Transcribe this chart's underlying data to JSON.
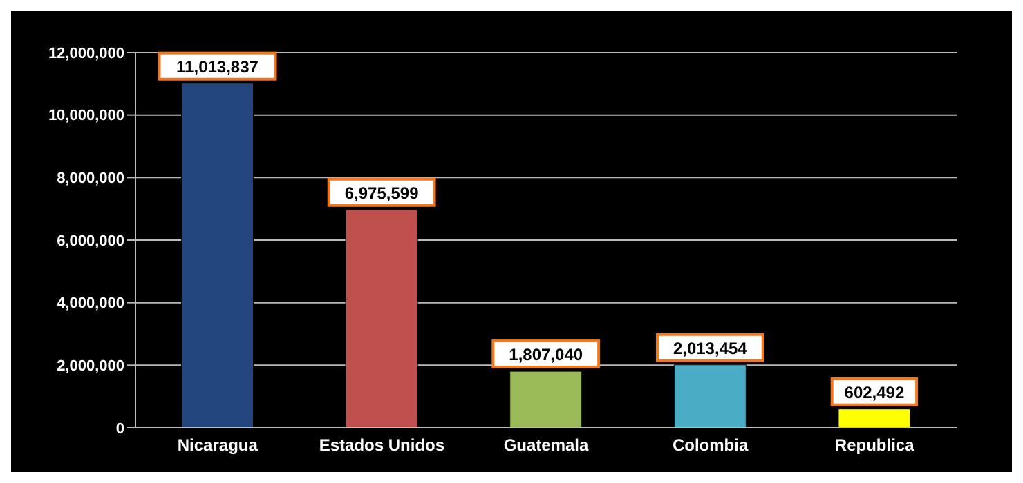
{
  "chart_data": {
    "type": "bar",
    "categories": [
      "Nicaragua",
      "Estados Unidos",
      "Guatemala",
      "Colombia",
      "Republica"
    ],
    "values": [
      11013837,
      6975599,
      1807040,
      2013454,
      602492
    ],
    "value_labels": [
      "11,013,837",
      "6,975,599",
      "1,807,040",
      "2,013,454",
      "602,492"
    ],
    "colors": [
      "#24467f",
      "#c0504d",
      "#9bbb59",
      "#4bacc6",
      "#ffff00"
    ],
    "ylim": [
      0,
      12000000
    ],
    "yticks": [
      0,
      {
        "value": 2000000,
        "label": "2,000,000"
      },
      {
        "value": 4000000,
        "label": "4,000,000"
      },
      {
        "value": 6000000,
        "label": "6,000,000"
      },
      {
        "value": 8000000,
        "label": "8,000,000"
      },
      {
        "value": 10000000,
        "label": "10,000,000"
      },
      {
        "value": 12000000,
        "label": "12,000,000"
      }
    ],
    "grid": "y"
  }
}
